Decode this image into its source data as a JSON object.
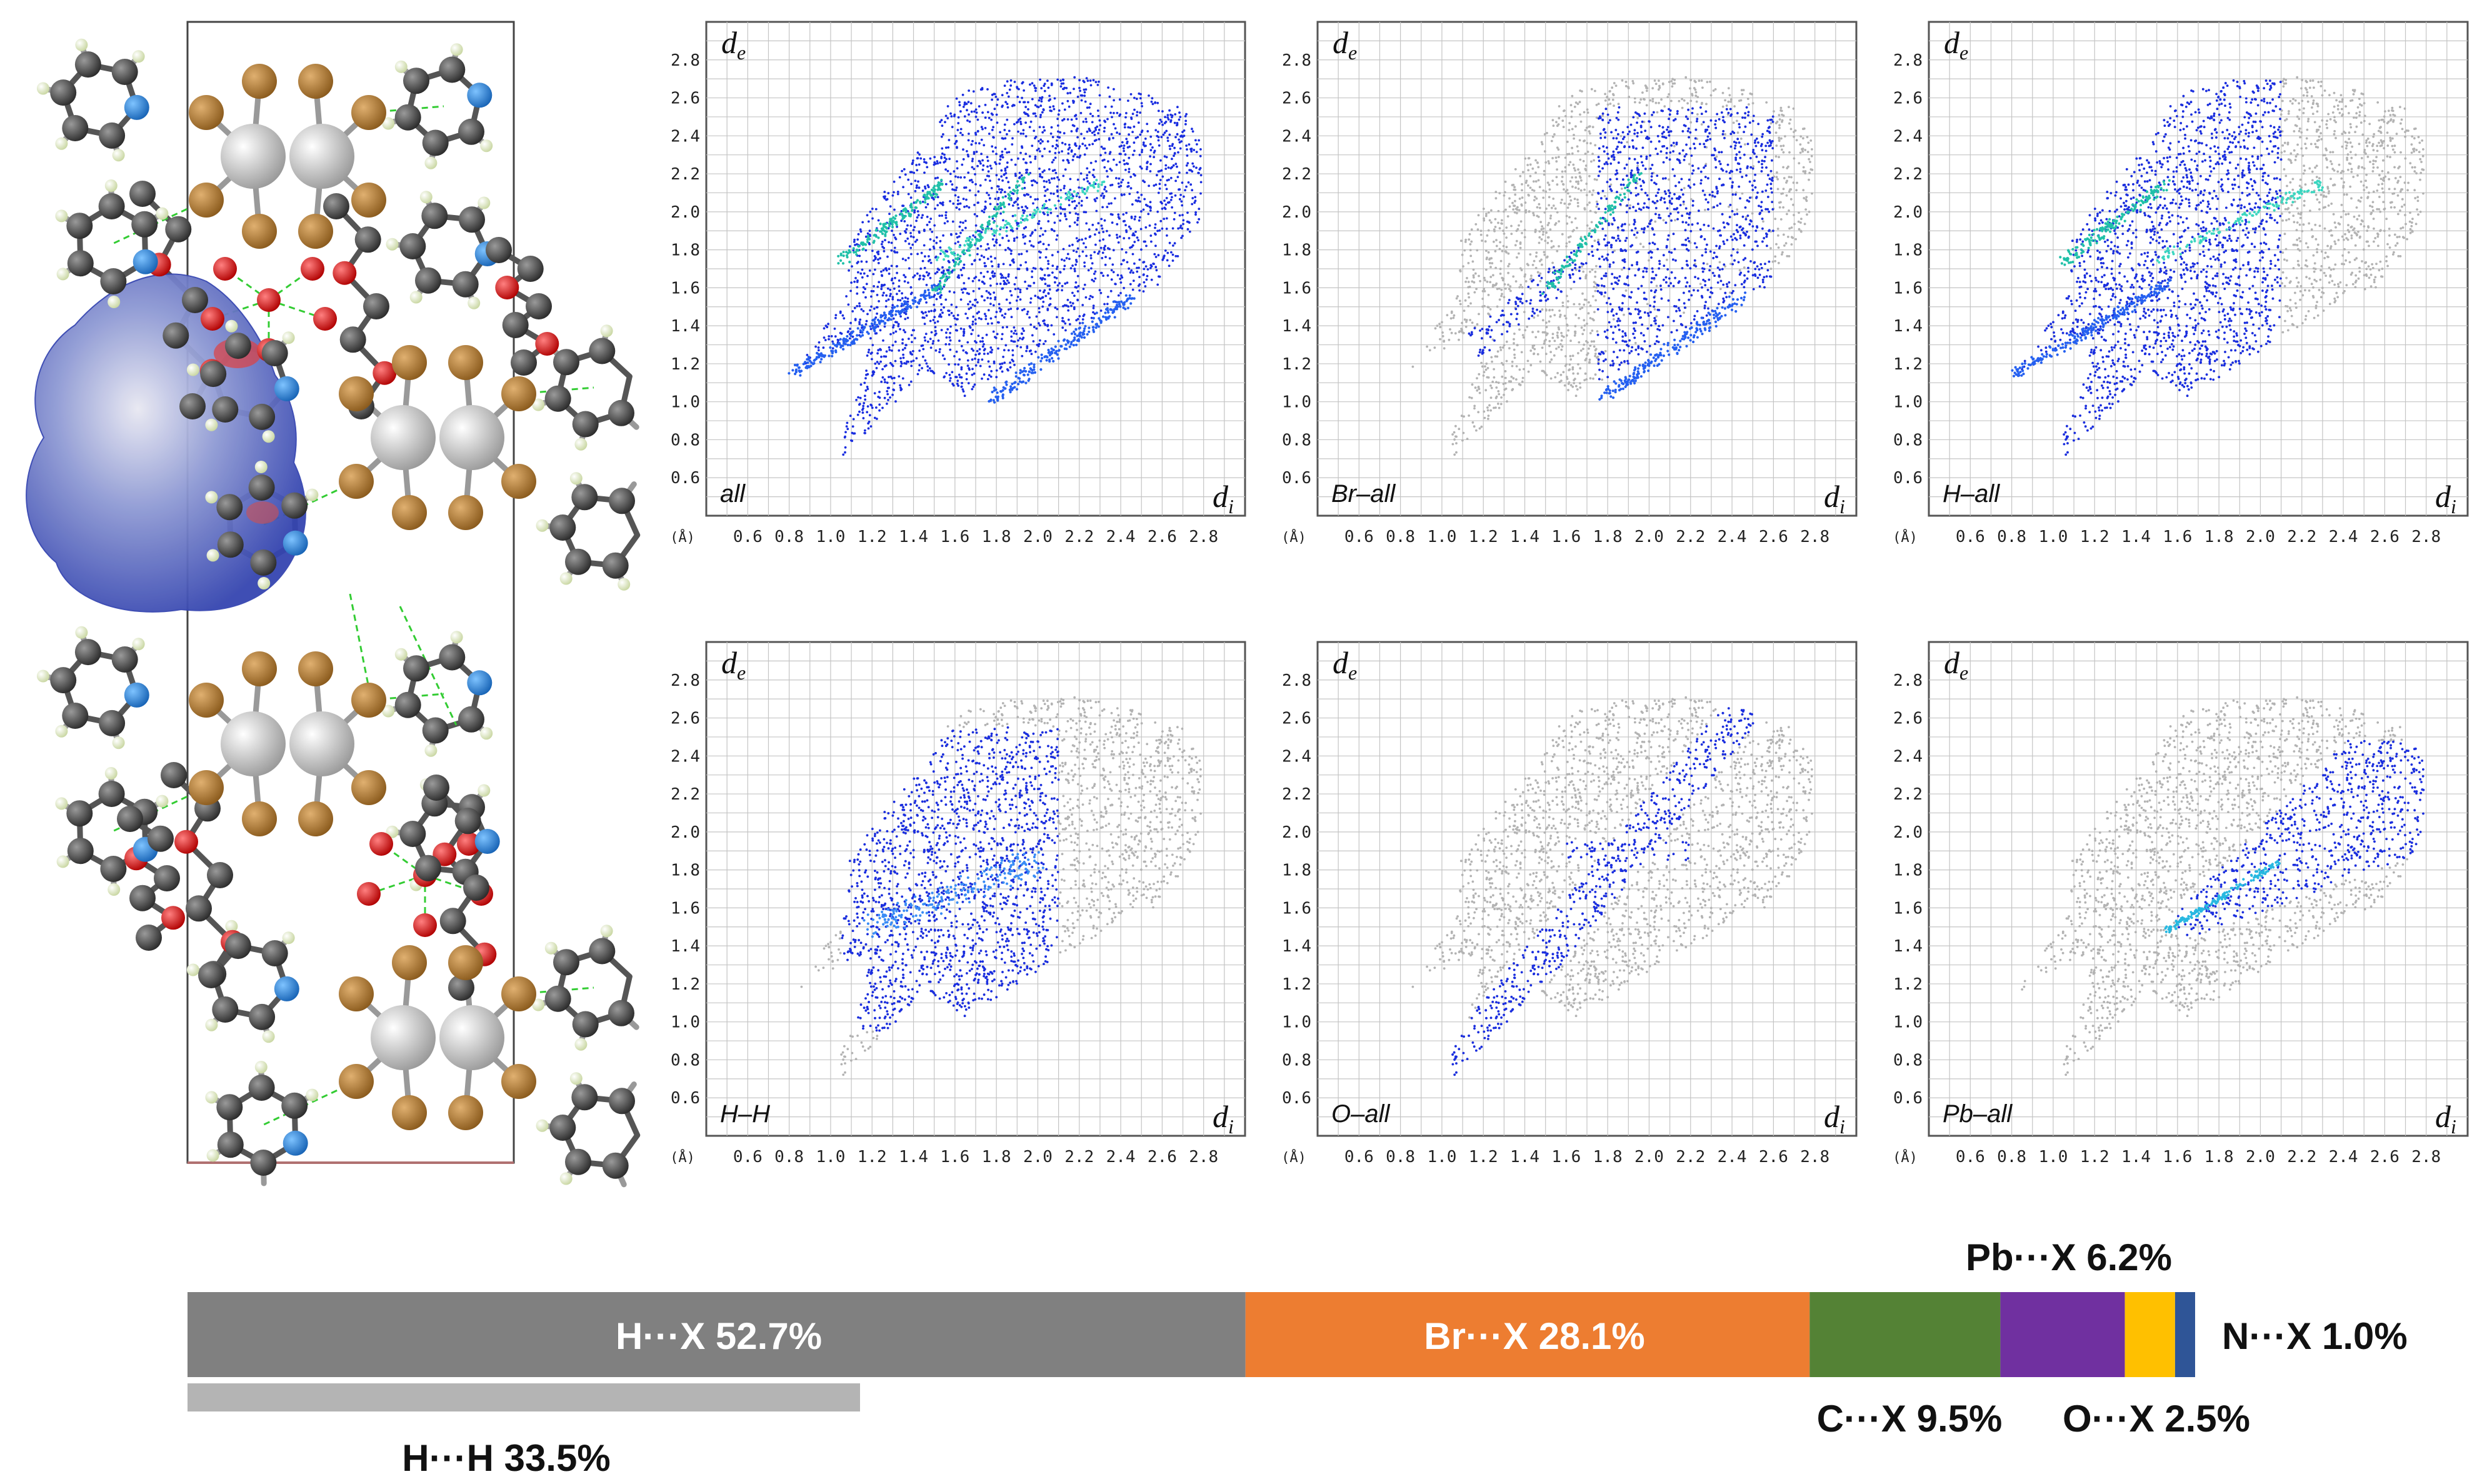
{
  "figure": {
    "fingerprint_axis": {
      "unit_label": "(Å)",
      "ticks": [
        "0.6",
        "0.8",
        "1.0",
        "1.2",
        "1.4",
        "1.6",
        "1.8",
        "2.0",
        "2.2",
        "2.4",
        "2.6",
        "2.8"
      ],
      "x_symbol": "d",
      "x_sub": "i",
      "y_symbol": "d",
      "y_sub": "e",
      "range": [
        0.4,
        3.0
      ]
    },
    "panels": [
      {
        "label": "all",
        "type": "all"
      },
      {
        "label": "Br–all",
        "type": "br"
      },
      {
        "label": "H–all",
        "type": "hall"
      },
      {
        "label": "H–H",
        "type": "hh"
      },
      {
        "label": "O–all",
        "type": "o"
      },
      {
        "label": "Pb–all",
        "type": "pb"
      }
    ],
    "crystal_structure": {
      "description_icon": "molecular-packing-with-hirshfeld-surface"
    },
    "contributions": {
      "total_bar": [
        {
          "name": "H···X",
          "label": "H···X  52.7%",
          "percent": 52.7,
          "color": "#808080"
        },
        {
          "name": "Br···X",
          "label": "Br···X  28.1%",
          "percent": 28.1,
          "color": "#ED7D31"
        },
        {
          "name": "C···X",
          "label": "C···X  9.5%",
          "percent": 9.5,
          "color": "#548235"
        },
        {
          "name": "Pb···X",
          "label": "Pb···X  6.2%",
          "percent": 6.2,
          "color": "#7030A0"
        },
        {
          "name": "O···X",
          "label": "O···X 2.5%",
          "percent": 2.5,
          "color": "#FFC000"
        },
        {
          "name": "N···X",
          "label": "N···X  1.0%",
          "percent": 1.0,
          "color": "#2F5597"
        }
      ],
      "sub_bar": {
        "name": "H···H",
        "label": "H···H  33.5%",
        "percent": 33.5,
        "color": "#B4B4B4"
      }
    }
  }
}
